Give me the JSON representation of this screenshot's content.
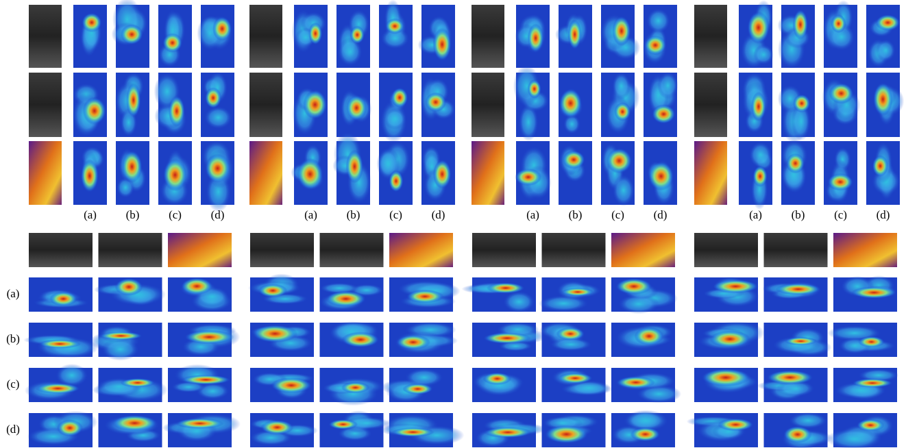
{
  "person_groups": [
    {
      "column_labels": [
        "(a)",
        "(b)",
        "(c)",
        "(d)"
      ]
    },
    {
      "column_labels": [
        "(a)",
        "(b)",
        "(c)",
        "(d)"
      ]
    },
    {
      "column_labels": [
        "(a)",
        "(b)",
        "(c)",
        "(d)"
      ]
    },
    {
      "column_labels": [
        "(a)",
        "(b)",
        "(c)",
        "(d)"
      ]
    }
  ],
  "vehicle_row_labels": [
    "(a)",
    "(b)",
    "(c)",
    "(d)"
  ]
}
